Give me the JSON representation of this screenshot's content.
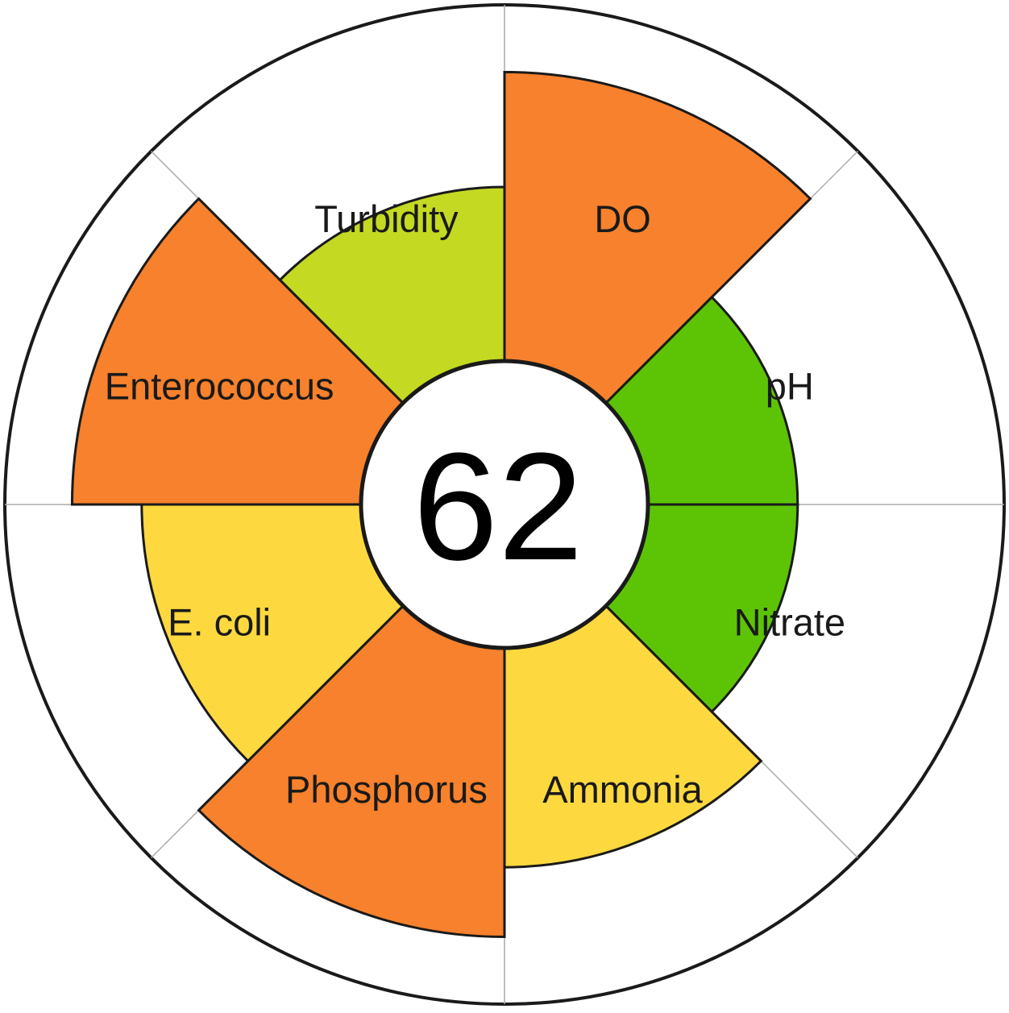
{
  "chart_data": {
    "type": "polar-area",
    "score": "62",
    "max_value": 100,
    "segments": [
      {
        "name": "DO",
        "value": 83,
        "color": "#f7812c"
      },
      {
        "name": "pH",
        "value": 43,
        "color": "#5cc405"
      },
      {
        "name": "Nitrate",
        "value": 43,
        "color": "#5cc405"
      },
      {
        "name": "Ammonia",
        "value": 63,
        "color": "#fdd93f"
      },
      {
        "name": "Phosphorus",
        "value": 83,
        "color": "#f7812c"
      },
      {
        "name": "E. coli",
        "value": 63,
        "color": "#fdd93f"
      },
      {
        "name": "Enterococcus",
        "value": 83,
        "color": "#f7812c"
      },
      {
        "name": "Turbidity",
        "value": 50,
        "color": "#c4d922"
      }
    ],
    "colors": {
      "background": "#ffffff",
      "grid": "#aaaaaa",
      "outline": "#1a1a1a",
      "center_fill": "#ffffff"
    }
  }
}
